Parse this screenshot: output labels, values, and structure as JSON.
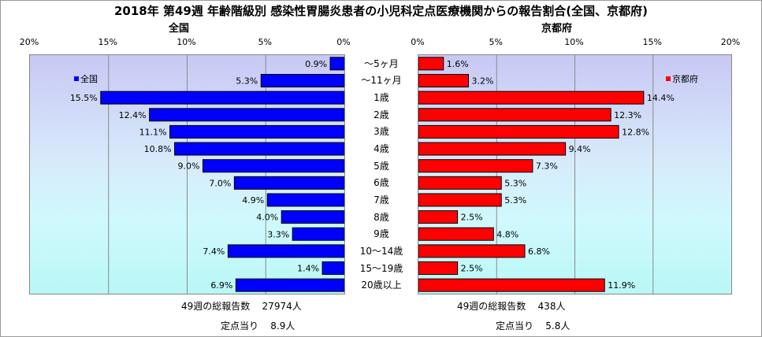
{
  "title": "2018年 第49週 年齢階級別 感染性胃腸炎患者の小児科定点医療機関からの報告割合(全国、京都府)",
  "chart_data": [
    {
      "type": "bar",
      "title": "全国",
      "orientation": "horizontal",
      "direction": "right-to-left",
      "categories": [
        "～5ヶ月",
        "～11ヶ月",
        "1歳",
        "2歳",
        "3歳",
        "4歳",
        "5歳",
        "6歳",
        "7歳",
        "8歳",
        "9歳",
        "10～14歳",
        "15～19歳",
        "20歳以上"
      ],
      "series": [
        {
          "name": "全国",
          "color": "#0000ff",
          "values": [
            0.9,
            5.3,
            15.5,
            12.4,
            11.1,
            10.8,
            9.0,
            7.0,
            4.9,
            4.0,
            3.3,
            7.4,
            1.4,
            6.9
          ],
          "labels": [
            "0.9%",
            "5.3%",
            "15.5%",
            "12.4%",
            "11.1%",
            "10.8%",
            "9.0%",
            "7.0%",
            "4.9%",
            "4.0%",
            "3.3%",
            "7.4%",
            "1.4%",
            "6.9%"
          ]
        }
      ],
      "xlim": [
        0,
        20
      ],
      "ticks": [
        "20%",
        "15%",
        "10%",
        "5%",
        "0%"
      ],
      "grid": true,
      "legend": "top-left"
    },
    {
      "type": "bar",
      "title": "京都府",
      "orientation": "horizontal",
      "direction": "left-to-right",
      "categories": [
        "～5ヶ月",
        "～11ヶ月",
        "1歳",
        "2歳",
        "3歳",
        "4歳",
        "5歳",
        "6歳",
        "7歳",
        "8歳",
        "9歳",
        "10～14歳",
        "15～19歳",
        "20歳以上"
      ],
      "series": [
        {
          "name": "京都府",
          "color": "#ff0000",
          "values": [
            1.6,
            3.2,
            14.4,
            12.3,
            12.8,
            9.4,
            7.3,
            5.3,
            5.3,
            2.5,
            4.8,
            6.8,
            2.5,
            11.9
          ],
          "labels": [
            "1.6%",
            "3.2%",
            "14.4%",
            "12.3%",
            "12.8%",
            "9.4%",
            "7.3%",
            "5.3%",
            "5.3%",
            "2.5%",
            "4.8%",
            "6.8%",
            "2.5%",
            "11.9%"
          ]
        }
      ],
      "xlim": [
        0,
        20
      ],
      "ticks": [
        "0%",
        "5%",
        "10%",
        "15%",
        "20%"
      ],
      "grid": true,
      "legend": "top-right"
    }
  ],
  "footer": {
    "national": {
      "total_label": "49週の総報告数",
      "total_value": "27974人",
      "per_label": "定点当り",
      "per_value": "8.9人"
    },
    "kyoto": {
      "total_label": "49週の総報告数",
      "total_value": "438人",
      "per_label": "定点当り",
      "per_value": "5.8人"
    }
  }
}
